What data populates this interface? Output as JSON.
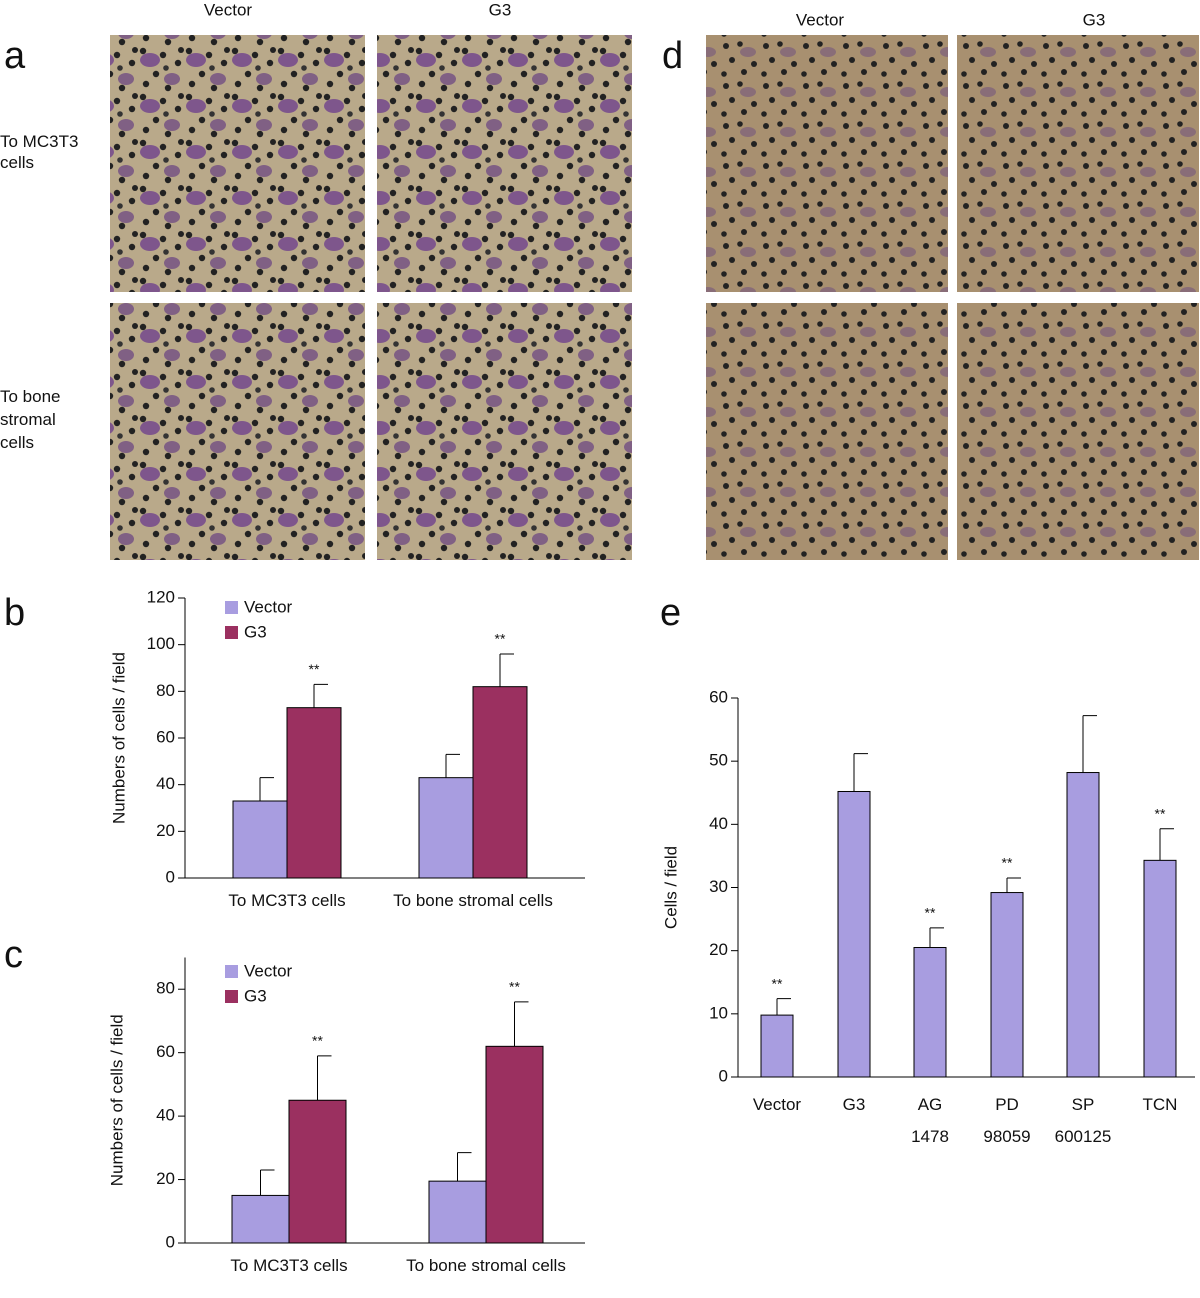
{
  "panel_a": {
    "label": "a",
    "columns": [
      "Vector",
      "G3"
    ],
    "rows": [
      "To MC3T3 cells",
      "To bone stromal cells"
    ]
  },
  "panel_d": {
    "label": "d",
    "columns": [
      "Vector",
      "G3"
    ]
  },
  "chart_data": [
    {
      "panel_label": "b",
      "type": "bar",
      "ylabel": "Numbers of cells / field",
      "categories": [
        "To MC3T3 cells",
        "To bone stromal cells"
      ],
      "series": [
        {
          "name": "Vector",
          "color": "#a89de0",
          "values": [
            33,
            43
          ],
          "errors": [
            10,
            10
          ]
        },
        {
          "name": "G3",
          "color": "#9b3060",
          "values": [
            73,
            82
          ],
          "errors": [
            10,
            14
          ],
          "significance": [
            "**",
            "**"
          ]
        }
      ],
      "ylim": [
        0,
        120
      ],
      "yticks": [
        0,
        20,
        40,
        60,
        80,
        100,
        120
      ]
    },
    {
      "panel_label": "c",
      "type": "bar",
      "ylabel": "Numbers of cells / field",
      "categories": [
        "To MC3T3 cells",
        "To bone stromal cells"
      ],
      "series": [
        {
          "name": "Vector",
          "color": "#a89de0",
          "values": [
            15,
            19.5
          ],
          "errors": [
            8,
            9
          ]
        },
        {
          "name": "G3",
          "color": "#9b3060",
          "values": [
            45,
            62
          ],
          "errors": [
            14,
            14
          ],
          "significance": [
            "**",
            "**"
          ]
        }
      ],
      "ylim": [
        0,
        90
      ],
      "yticks": [
        0,
        20,
        40,
        60,
        80
      ]
    },
    {
      "panel_label": "e",
      "type": "bar",
      "ylabel": "Cells / field",
      "categories": [
        "Vector",
        "G3",
        "AG 1478",
        "PD 98059",
        "SP 600125",
        "TCN"
      ],
      "series": [
        {
          "name": "Cells",
          "color": "#a89de0",
          "values": [
            9.8,
            45.2,
            20.5,
            29.2,
            48.2,
            34.3
          ],
          "errors": [
            2.6,
            6,
            3.1,
            2.3,
            9,
            5
          ],
          "significance": [
            "**",
            null,
            "**",
            "**",
            null,
            "**"
          ]
        }
      ],
      "ylim": [
        0,
        60
      ],
      "yticks": [
        0,
        10,
        20,
        30,
        40,
        50,
        60
      ]
    }
  ]
}
